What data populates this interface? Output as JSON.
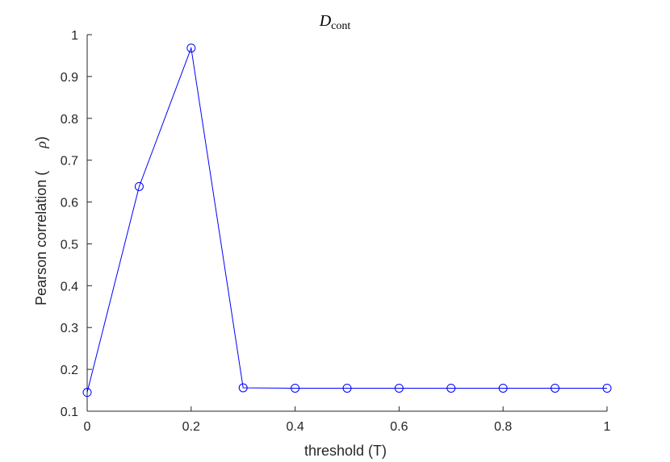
{
  "chart_data": {
    "type": "line",
    "title_main": "D",
    "title_sub": "cont",
    "xlabel": "threshold (T)",
    "ylabel": "Pearson correlation (",
    "ylabel_symbol": "ρ",
    "ylabel_close": ")",
    "xlim": [
      0,
      1
    ],
    "ylim": [
      0.1,
      1
    ],
    "xticks": [
      0,
      0.2,
      0.4,
      0.6,
      0.8,
      1
    ],
    "xtick_labels": [
      "0",
      "0.2",
      "0.4",
      "0.6",
      "0.8",
      "1"
    ],
    "yticks": [
      0.1,
      0.2,
      0.3,
      0.4,
      0.5,
      0.6,
      0.7,
      0.8,
      0.9,
      1
    ],
    "ytick_labels": [
      "0.1",
      "0.2",
      "0.3",
      "0.4",
      "0.5",
      "0.6",
      "0.7",
      "0.8",
      "0.9",
      "1"
    ],
    "grid": false,
    "line_color": "#0000ff",
    "marker": "circle-open",
    "series": [
      {
        "x": [
          0,
          0.1,
          0.2,
          0.3,
          0.4,
          0.5,
          0.6,
          0.7,
          0.8,
          0.9,
          1.0
        ],
        "y": [
          0.145,
          0.637,
          0.968,
          0.156,
          0.155,
          0.155,
          0.155,
          0.155,
          0.155,
          0.155,
          0.155
        ]
      }
    ]
  }
}
